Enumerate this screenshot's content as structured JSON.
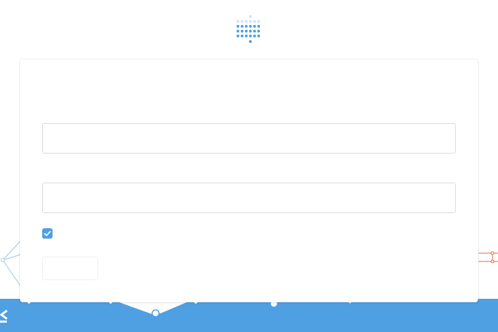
{
  "page": {
    "title": ""
  },
  "logo": {
    "icon": "dot-matrix-logo-icon"
  },
  "login_form": {
    "title": "",
    "email": {
      "label": "",
      "value": "",
      "placeholder": ""
    },
    "password": {
      "label": "",
      "value": "",
      "placeholder": ""
    },
    "remember_me": {
      "label": "",
      "checked": true
    },
    "submit_label": ""
  },
  "colors": {
    "accent": "#4f9fe3",
    "line_blue": "#9dc4ea",
    "line_orange": "#e0653a",
    "band": "#4f9fe3"
  }
}
